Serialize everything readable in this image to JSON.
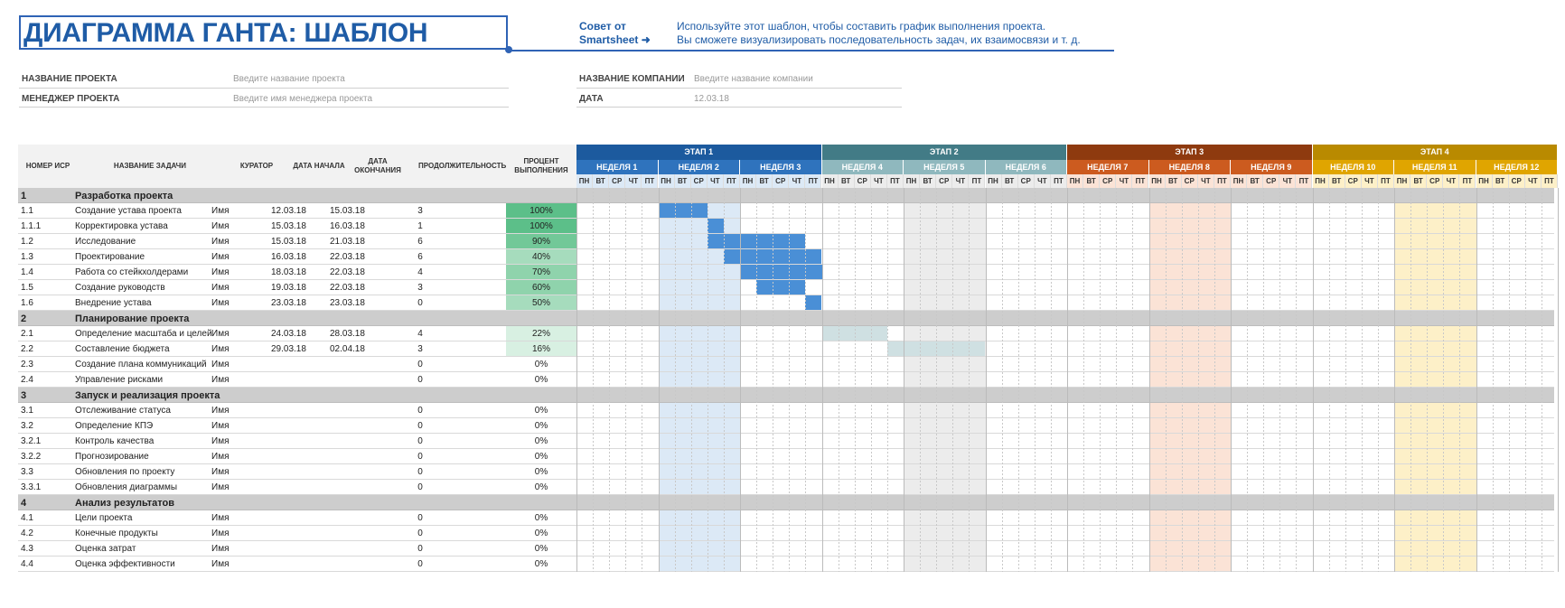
{
  "header": {
    "title": "ДИАГРАММА ГАНТА: ШАБЛОН",
    "tip_label_1": "Совет от",
    "tip_label_2": "Smartsheet ➜",
    "tip_text_1": "Используйте этот шаблон, чтобы составить график выполнения проекта.",
    "tip_text_2": "Вы сможете визуализировать последовательность задач, их взаимосвязи и т. д."
  },
  "info": {
    "project_name_label": "НАЗВАНИЕ ПРОЕКТА",
    "project_name_value": "Введите название проекта",
    "manager_label": "МЕНЕДЖЕР ПРОЕКТА",
    "manager_value": "Введите имя менеджера проекта",
    "company_label": "НАЗВАНИЕ КОМПАНИИ",
    "company_value": "Введите название компании",
    "date_label": "ДАТА",
    "date_value": "12.03.18"
  },
  "columns": {
    "wbs": "НОМЕР ИСР",
    "task": "НАЗВАНИЕ ЗАДАЧИ",
    "owner": "КУРАТОР",
    "start": "ДАТА НАЧАЛА",
    "end_1": "ДАТА",
    "end_2": "ОКОНЧАНИЯ",
    "duration": "ПРОДОЛЖИТЕЛЬНОСТЬ",
    "pct_1": "ПРОЦЕНТ",
    "pct_2": "ВЫПОЛНЕНИЯ"
  },
  "days": [
    "ПН",
    "ВТ",
    "СР",
    "ЧТ",
    "ПТ"
  ],
  "stages": [
    {
      "label": "ЭТАП 1",
      "color": "#1c5a9e",
      "week_color": "#2f73bd",
      "bar_color": "#4a8fd6",
      "shade_color": "#dce9f6",
      "shade_week": 1
    },
    {
      "label": "ЭТАП 2",
      "color": "#427b86",
      "week_color": "#8fb8be",
      "bar_color": "#cfe0e2",
      "shade_color": "#ececec",
      "shade_week": 1
    },
    {
      "label": "ЭТАП 3",
      "color": "#8e3a0f",
      "week_color": "#cc5b1f",
      "bar_color": "#f3b994",
      "shade_color": "#fbe3d6",
      "shade_week": 1
    },
    {
      "label": "ЭТАП 4",
      "color": "#b98a00",
      "week_color": "#e0a500",
      "bar_color": "#f6d779",
      "shade_color": "#fdf0c8",
      "shade_week": 1
    }
  ],
  "weeks": [
    "НЕДЕЛЯ 1",
    "НЕДЕЛЯ 2",
    "НЕДЕЛЯ 3",
    "НЕДЕЛЯ 4",
    "НЕДЕЛЯ 5",
    "НЕДЕЛЯ 6",
    "НЕДЕЛЯ 7",
    "НЕДЕЛЯ 8",
    "НЕДЕЛЯ 9",
    "НЕДЕЛЯ 10",
    "НЕДЕЛЯ 11",
    "НЕДЕЛЯ 12"
  ],
  "rows": [
    {
      "type": "group",
      "wbs": "1",
      "task": "Разработка проекта"
    },
    {
      "type": "task",
      "wbs": "1.1",
      "task": "Создание устава проекта",
      "owner": "Имя",
      "start": "12.03.18",
      "end": "15.03.18",
      "duration": "3",
      "pct": "100%",
      "pct_value": 100,
      "stage": 0,
      "bar_start": 5,
      "bar_len": 3
    },
    {
      "type": "task",
      "wbs": "1.1.1",
      "task": "Корректировка устава",
      "owner": "Имя",
      "start": "15.03.18",
      "end": "16.03.18",
      "duration": "1",
      "pct": "100%",
      "pct_value": 100,
      "stage": 0,
      "bar_start": 8,
      "bar_len": 1
    },
    {
      "type": "task",
      "wbs": "1.2",
      "task": "Исследование",
      "owner": "Имя",
      "start": "15.03.18",
      "end": "21.03.18",
      "duration": "6",
      "pct": "90%",
      "pct_value": 90,
      "stage": 0,
      "bar_start": 8,
      "bar_len": 6
    },
    {
      "type": "task",
      "wbs": "1.3",
      "task": "Проектирование",
      "owner": "Имя",
      "start": "16.03.18",
      "end": "22.03.18",
      "duration": "6",
      "pct": "40%",
      "pct_value": 40,
      "stage": 0,
      "bar_start": 9,
      "bar_len": 6
    },
    {
      "type": "task",
      "wbs": "1.4",
      "task": "Работа со стейкхолдерами",
      "owner": "Имя",
      "start": "18.03.18",
      "end": "22.03.18",
      "duration": "4",
      "pct": "70%",
      "pct_value": 70,
      "stage": 0,
      "bar_start": 10,
      "bar_len": 5
    },
    {
      "type": "task",
      "wbs": "1.5",
      "task": "Создание руководств",
      "owner": "Имя",
      "start": "19.03.18",
      "end": "22.03.18",
      "duration": "3",
      "pct": "60%",
      "pct_value": 60,
      "stage": 0,
      "bar_start": 11,
      "bar_len": 3
    },
    {
      "type": "task",
      "wbs": "1.6",
      "task": "Внедрение устава",
      "owner": "Имя",
      "start": "23.03.18",
      "end": "23.03.18",
      "duration": "0",
      "pct": "50%",
      "pct_value": 50,
      "stage": 0,
      "bar_start": 14,
      "bar_len": 1
    },
    {
      "type": "group",
      "wbs": "2",
      "task": "Планирование проекта"
    },
    {
      "type": "task",
      "wbs": "2.1",
      "task": "Определение масштаба и целей",
      "owner": "Имя",
      "start": "24.03.18",
      "end": "28.03.18",
      "duration": "4",
      "pct": "22%",
      "pct_value": 22,
      "stage": 1,
      "bar_start": 15,
      "bar_len": 4
    },
    {
      "type": "task",
      "wbs": "2.2",
      "task": "Составление бюджета",
      "owner": "Имя",
      "start": "29.03.18",
      "end": "02.04.18",
      "duration": "3",
      "pct": "16%",
      "pct_value": 16,
      "stage": 1,
      "bar_start": 19,
      "bar_len": 6
    },
    {
      "type": "task",
      "wbs": "2.3",
      "task": "Создание плана коммуникаций",
      "owner": "Имя",
      "start": "",
      "end": "",
      "duration": "0",
      "pct": "0%",
      "pct_value": 0
    },
    {
      "type": "task",
      "wbs": "2.4",
      "task": "Управление рисками",
      "owner": "Имя",
      "start": "",
      "end": "",
      "duration": "0",
      "pct": "0%",
      "pct_value": 0
    },
    {
      "type": "group",
      "wbs": "3",
      "task": "Запуск и реализация проекта"
    },
    {
      "type": "task",
      "wbs": "3.1",
      "task": "Отслеживание статуса",
      "owner": "Имя",
      "start": "",
      "end": "",
      "duration": "0",
      "pct": "0%",
      "pct_value": 0
    },
    {
      "type": "task",
      "wbs": "3.2",
      "task": "Определение КПЭ",
      "owner": "Имя",
      "start": "",
      "end": "",
      "duration": "0",
      "pct": "0%",
      "pct_value": 0
    },
    {
      "type": "task",
      "wbs": "3.2.1",
      "task": "Контроль качества",
      "owner": "Имя",
      "start": "",
      "end": "",
      "duration": "0",
      "pct": "0%",
      "pct_value": 0
    },
    {
      "type": "task",
      "wbs": "3.2.2",
      "task": "Прогнозирование",
      "owner": "Имя",
      "start": "",
      "end": "",
      "duration": "0",
      "pct": "0%",
      "pct_value": 0
    },
    {
      "type": "task",
      "wbs": "3.3",
      "task": "Обновления по проекту",
      "owner": "Имя",
      "start": "",
      "end": "",
      "duration": "0",
      "pct": "0%",
      "pct_value": 0
    },
    {
      "type": "task",
      "wbs": "3.3.1",
      "task": "Обновления диаграммы",
      "owner": "Имя",
      "start": "",
      "end": "",
      "duration": "0",
      "pct": "0%",
      "pct_value": 0
    },
    {
      "type": "group",
      "wbs": "4",
      "task": "Анализ результатов"
    },
    {
      "type": "task",
      "wbs": "4.1",
      "task": "Цели проекта",
      "owner": "Имя",
      "start": "",
      "end": "",
      "duration": "0",
      "pct": "0%",
      "pct_value": 0
    },
    {
      "type": "task",
      "wbs": "4.2",
      "task": "Конечные продукты",
      "owner": "Имя",
      "start": "",
      "end": "",
      "duration": "0",
      "pct": "0%",
      "pct_value": 0
    },
    {
      "type": "task",
      "wbs": "4.3",
      "task": "Оценка затрат",
      "owner": "Имя",
      "start": "",
      "end": "",
      "duration": "0",
      "pct": "0%",
      "pct_value": 0
    },
    {
      "type": "task",
      "wbs": "4.4",
      "task": "Оценка эффективности",
      "owner": "Имя",
      "start": "",
      "end": "",
      "duration": "0",
      "pct": "0%",
      "pct_value": 0
    }
  ]
}
